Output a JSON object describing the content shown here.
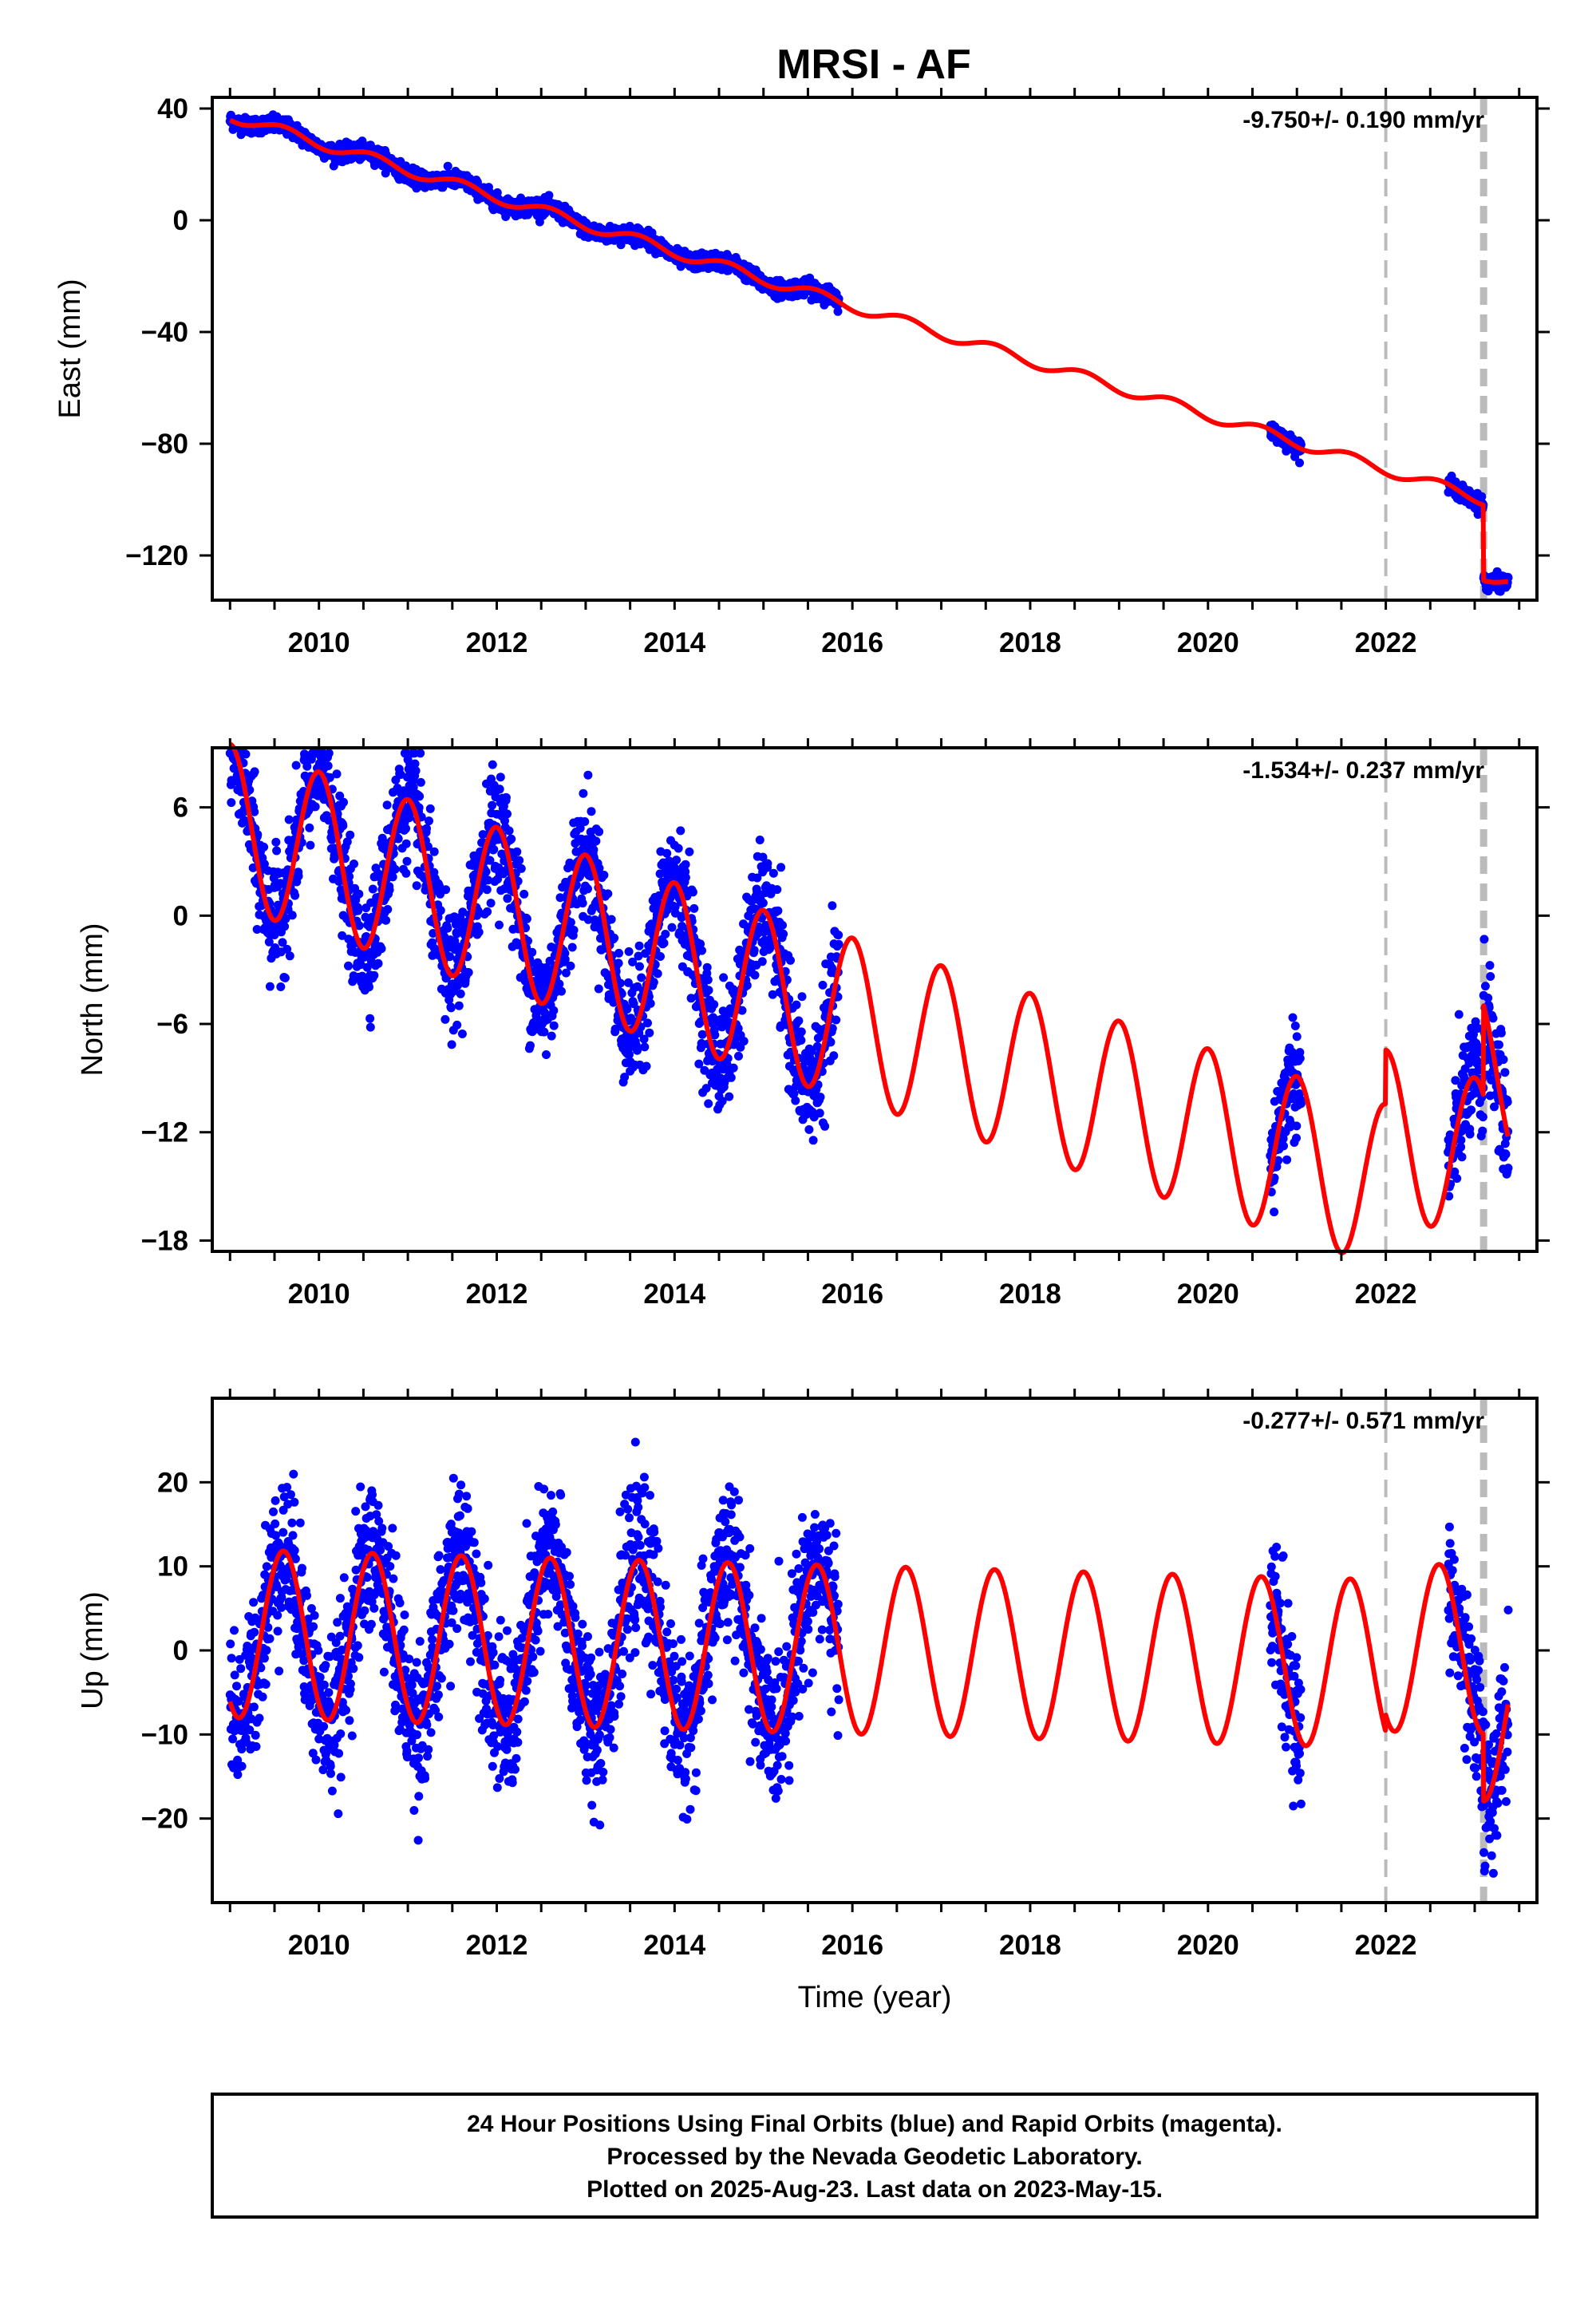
{
  "title": "MRSI - AF",
  "xlabel": "Time (year)",
  "footer": {
    "line1": "24 Hour Positions Using Final Orbits (blue) and Rapid Orbits (magenta).",
    "line2": "Processed by the Nevada Geodetic Laboratory.",
    "line3": "Plotted on 2025-Aug-23. Last data on 2023-May-15."
  },
  "colors": {
    "final_orbits": "#0000ff",
    "model": "#ff0000",
    "steps": "#bbbbbb",
    "frame": "#000000"
  },
  "chart_data": [
    {
      "type": "scatter",
      "component": "East",
      "ylabel": "East (mm)",
      "rate_label": "-9.750+/- 0.190 mm/yr",
      "xlim": [
        2008.8,
        2023.7
      ],
      "ylim": [
        -136,
        44
      ],
      "yticks": [
        40,
        0,
        -40,
        -80,
        -120
      ],
      "xticks": [
        2010,
        2012,
        2014,
        2016,
        2018,
        2020,
        2022
      ],
      "step_lines": [
        2022.0,
        2023.1
      ],
      "model": {
        "trend_at_2009": 37.5,
        "rate_mm_yr": -9.75,
        "annual_amp": 2.0,
        "annual_phase_year": 0.6,
        "steps": [
          {
            "year": 2022.0,
            "offset": 0
          },
          {
            "year": 2023.1,
            "offset": -27
          }
        ]
      },
      "data_segments": [
        [
          2009.0,
          2015.85
        ],
        [
          2020.7,
          2021.05
        ],
        [
          2022.7,
          2023.38
        ]
      ],
      "scatter": 1.4,
      "series": [
        {
          "name": "Final Orbits",
          "color": "#0000ff"
        },
        {
          "name": "Model",
          "color": "#ff0000"
        }
      ]
    },
    {
      "type": "scatter",
      "component": "North",
      "ylabel": "North (mm)",
      "rate_label": "-1.534+/- 0.237 mm/yr",
      "xlim": [
        2008.8,
        2023.7
      ],
      "ylim": [
        -18.6,
        9.3
      ],
      "yticks": [
        6,
        0,
        -6,
        -12,
        -18
      ],
      "xticks": [
        2010,
        2012,
        2014,
        2016,
        2018,
        2020,
        2022
      ],
      "step_lines": [
        2022.0,
        2023.1
      ],
      "model": {
        "trend_at_2009": 5.0,
        "rate_mm_yr": -1.534,
        "annual_amp": 4.5,
        "annual_phase_year": 0.0,
        "steps": [
          {
            "year": 2022.0,
            "offset": 3
          },
          {
            "year": 2023.1,
            "offset": 5
          }
        ]
      },
      "data_segments": [
        [
          2009.0,
          2015.85
        ],
        [
          2020.7,
          2021.05
        ],
        [
          2022.7,
          2023.38
        ]
      ],
      "scatter": 1.6,
      "series": [
        {
          "name": "Final Orbits",
          "color": "#0000ff"
        },
        {
          "name": "Model",
          "color": "#ff0000"
        }
      ]
    },
    {
      "type": "scatter",
      "component": "Up",
      "ylabel": "Up (mm)",
      "rate_label": "-0.277+/- 0.571 mm/yr",
      "xlim": [
        2008.8,
        2023.7
      ],
      "ylim": [
        -30,
        30
      ],
      "yticks": [
        20,
        10,
        0,
        -10,
        -20
      ],
      "xticks": [
        2010,
        2012,
        2014,
        2016,
        2018,
        2020,
        2022
      ],
      "step_lines": [
        2022.0,
        2023.1
      ],
      "model": {
        "trend_at_2009": 2.0,
        "rate_mm_yr": -0.277,
        "annual_amp": 10.0,
        "annual_phase_year": 0.6,
        "steps": [
          {
            "year": 2022.0,
            "offset": 2
          },
          {
            "year": 2023.1,
            "offset": -8
          }
        ]
      },
      "data_segments": [
        [
          2009.0,
          2015.85
        ],
        [
          2020.7,
          2021.05
        ],
        [
          2022.7,
          2023.38
        ]
      ],
      "scatter": 4.5,
      "series": [
        {
          "name": "Final Orbits",
          "color": "#0000ff"
        },
        {
          "name": "Model",
          "color": "#ff0000"
        }
      ]
    }
  ]
}
